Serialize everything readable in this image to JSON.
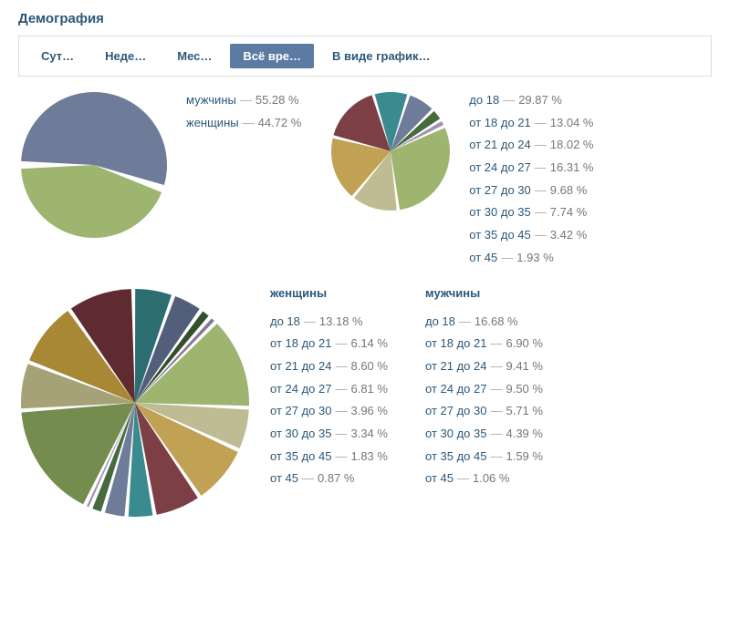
{
  "title": "Демография",
  "tabs": {
    "items": [
      {
        "label": "Сут…",
        "active": false
      },
      {
        "label": "Неде…",
        "active": false
      },
      {
        "label": "Мес…",
        "active": false
      },
      {
        "label": "Всё вре…",
        "active": true
      },
      {
        "label": "В виде график…",
        "active": false
      }
    ],
    "active_bg": "#5b7ba3",
    "active_fg": "#ffffff",
    "inactive_fg": "#2b587a",
    "border": "#d8dde3"
  },
  "colors": {
    "link": "#2b587a",
    "value": "#777777",
    "sep": "#aaaaaa",
    "bg": "#ffffff"
  },
  "gender_chart": {
    "type": "pie",
    "radius": 80,
    "gap_deg": 6,
    "start_deg": 180,
    "slices": [
      {
        "label": "мужчины",
        "value": 55.28,
        "color": "#6f7c99"
      },
      {
        "label": "женщины",
        "value": 44.72,
        "color": "#9eb570"
      }
    ]
  },
  "age_chart": {
    "type": "pie",
    "radius": 65,
    "gap_deg": 3,
    "start_deg": -25,
    "slices": [
      {
        "label": "до 18",
        "value": 29.87,
        "color": "#9eb570"
      },
      {
        "label": "от 18 до 21",
        "value": 13.04,
        "color": "#bfbc93"
      },
      {
        "label": "от 21 до 24",
        "value": 18.02,
        "color": "#c1a254"
      },
      {
        "label": "от 24 до 27",
        "value": 16.31,
        "color": "#7c3f46"
      },
      {
        "label": "от 27 до 30",
        "value": 9.68,
        "color": "#3a8b8f"
      },
      {
        "label": "от 30 до 35",
        "value": 7.74,
        "color": "#6f7c99"
      },
      {
        "label": "от 35 до 45",
        "value": 3.42,
        "color": "#476a3f"
      },
      {
        "label": "от 45",
        "value": 1.93,
        "color": "#a093b0"
      }
    ]
  },
  "combined_chart": {
    "type": "pie",
    "radius": 125,
    "gap_deg": 2,
    "start_deg": -45,
    "heading_f": "женщины",
    "heading_m": "мужчины",
    "female": [
      {
        "label": "до 18",
        "value": 13.18,
        "color": "#9eb570"
      },
      {
        "label": "от 18 до 21",
        "value": 6.14,
        "color": "#bfbc93"
      },
      {
        "label": "от 21 до 24",
        "value": 8.6,
        "color": "#c1a254"
      },
      {
        "label": "от 24 до 27",
        "value": 6.81,
        "color": "#7c3f46"
      },
      {
        "label": "от 27 до 30",
        "value": 3.96,
        "color": "#3a8b8f"
      },
      {
        "label": "от 30 до 35",
        "value": 3.34,
        "color": "#6f7c99"
      },
      {
        "label": "от 35 до 45",
        "value": 1.83,
        "color": "#476a3f"
      },
      {
        "label": "от 45",
        "value": 0.87,
        "color": "#a093b0"
      }
    ],
    "male": [
      {
        "label": "до 18",
        "value": 16.68,
        "color": "#748c4d"
      },
      {
        "label": "от 18 до 21",
        "value": 6.9,
        "color": "#a6a277"
      },
      {
        "label": "от 21 до 24",
        "value": 9.41,
        "color": "#a88735"
      },
      {
        "label": "от 24 до 27",
        "value": 9.5,
        "color": "#5f2a30"
      },
      {
        "label": "от 27 до 30",
        "value": 5.71,
        "color": "#2b6d70"
      },
      {
        "label": "от 30 до 35",
        "value": 4.39,
        "color": "#535f7a"
      },
      {
        "label": "от 35 до 45",
        "value": 1.59,
        "color": "#334f2c"
      },
      {
        "label": "от 45",
        "value": 1.06,
        "color": "#857894"
      }
    ]
  }
}
